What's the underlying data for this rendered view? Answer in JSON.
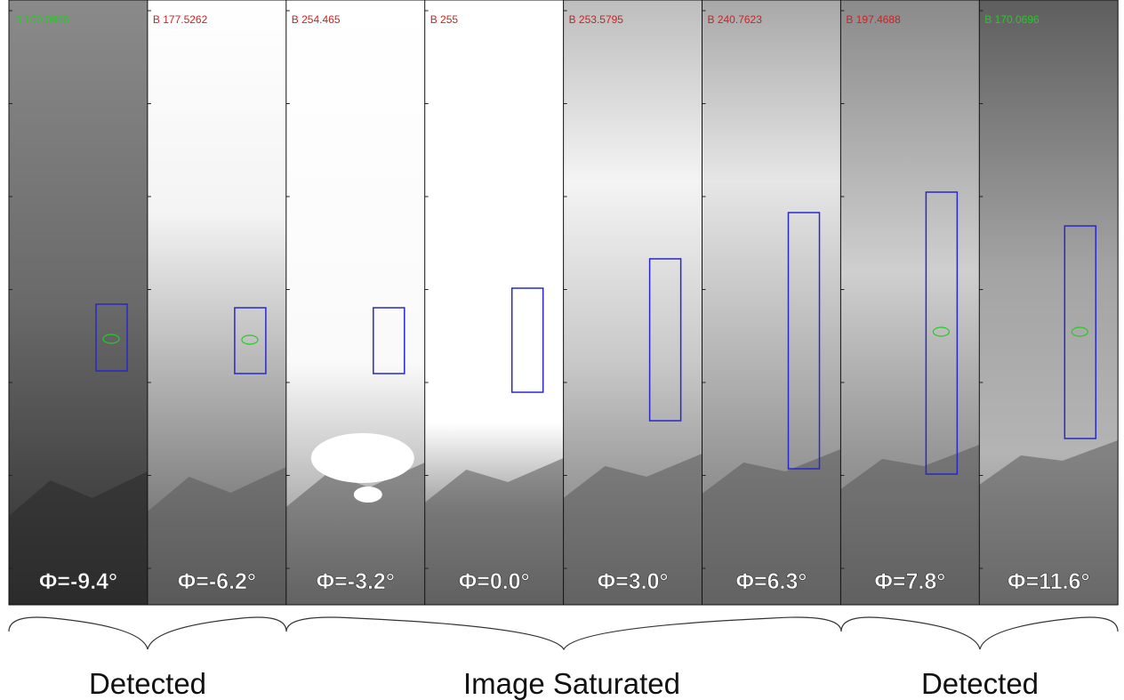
{
  "panels": [
    {
      "brightness": "B 100.0966",
      "label_color": "#22cc22",
      "angle": "Φ=-9.4°"
    },
    {
      "brightness": "B 177.5262",
      "label_color": "#cc2222",
      "angle": "Φ=-6.2°"
    },
    {
      "brightness": "B 254.465",
      "label_color": "#cc2222",
      "angle": "Φ=-3.2°"
    },
    {
      "brightness": "B 255",
      "label_color": "#cc2222",
      "angle": "Φ=0.0°"
    },
    {
      "brightness": "B 253.5795",
      "label_color": "#cc2222",
      "angle": "Φ=3.0°"
    },
    {
      "brightness": "B 240.7623",
      "label_color": "#cc2222",
      "angle": "Φ=6.3°"
    },
    {
      "brightness": "B 197.4688",
      "label_color": "#cc2222",
      "angle": "Φ=7.8°"
    },
    {
      "brightness": "B 170.0696",
      "label_color": "#22cc22",
      "angle": "Φ=11.6°"
    }
  ],
  "groups": [
    "Detected",
    "Image Saturated",
    "Detected"
  ]
}
